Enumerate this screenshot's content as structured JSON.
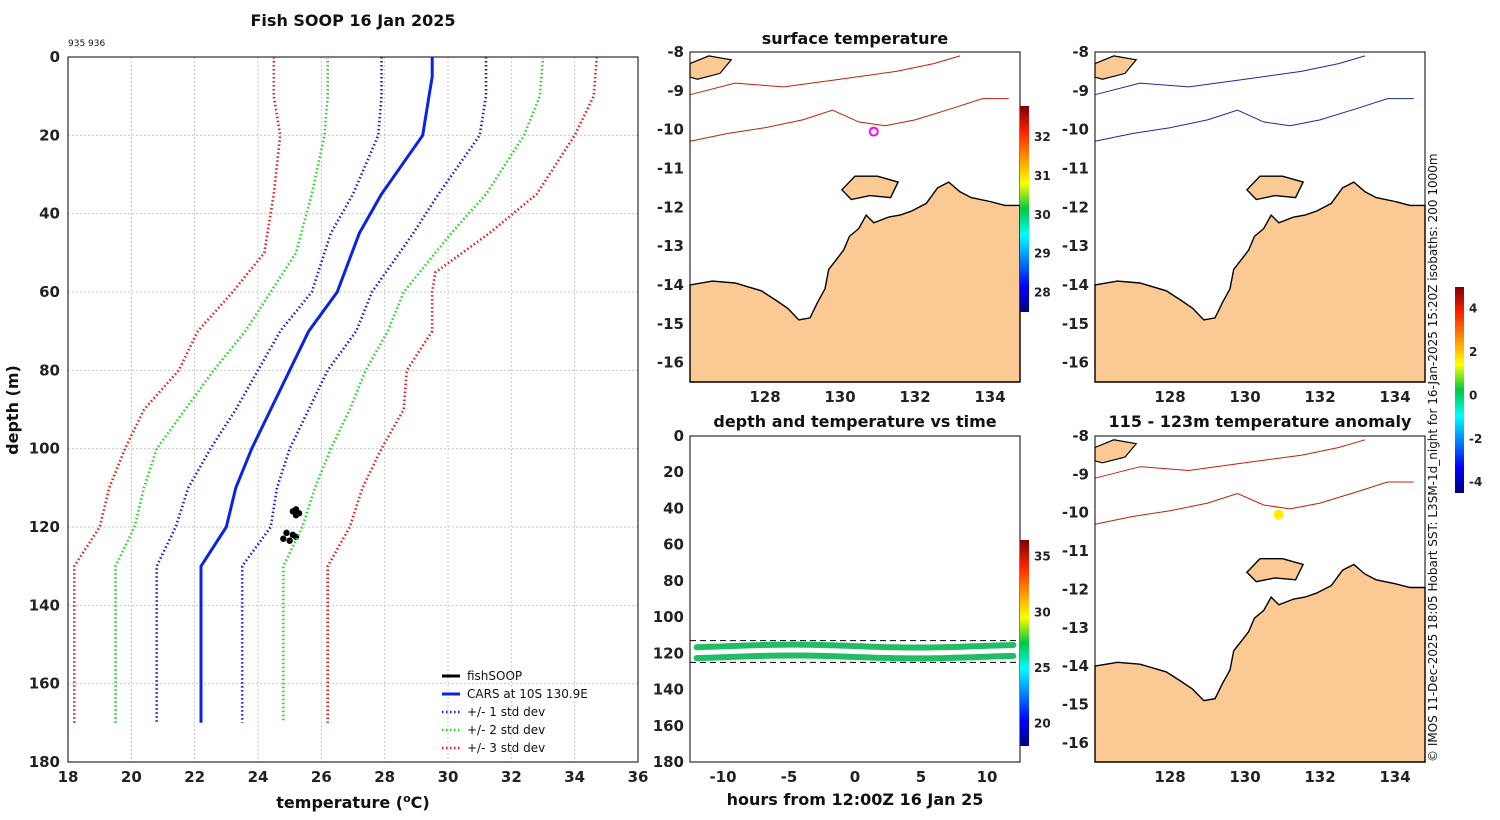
{
  "chart_data": [
    {
      "type": "line",
      "title": "Fish SOOP 16 Jan 2025",
      "subtitle": "935 936",
      "xlabel": "temperature (oC)",
      "ylabel": "depth (m)",
      "xlim": [
        18,
        36
      ],
      "ylim": [
        180,
        0
      ],
      "xticks": [
        "18",
        "20",
        "22",
        "24",
        "26",
        "28",
        "30",
        "32",
        "34",
        "36"
      ],
      "yticks": [
        "0",
        "20",
        "40",
        "60",
        "80",
        "100",
        "120",
        "140",
        "160",
        "180"
      ],
      "grid": true,
      "legend": "bottom-right",
      "series": [
        {
          "name": "fishSOOP",
          "color": "#000000",
          "style": "points",
          "points": [
            [
              25.1,
              116
            ],
            [
              25.2,
              115.5
            ],
            [
              25.3,
              116.5
            ],
            [
              25.2,
              117
            ],
            [
              24.9,
              121.5
            ],
            [
              25.1,
              122
            ],
            [
              25.2,
              122.5
            ],
            [
              24.8,
              123
            ],
            [
              25.0,
              123.5
            ]
          ]
        },
        {
          "name": "CARS at 10S 130.9E",
          "color": "#0a24e6",
          "style": "solid",
          "points": [
            [
              29.5,
              0
            ],
            [
              29.5,
              5
            ],
            [
              29.4,
              10
            ],
            [
              29.2,
              20
            ],
            [
              27.9,
              35
            ],
            [
              27.2,
              45
            ],
            [
              26.5,
              60
            ],
            [
              25.6,
              70
            ],
            [
              25.0,
              80
            ],
            [
              24.4,
              90
            ],
            [
              23.8,
              100
            ],
            [
              23.3,
              110
            ],
            [
              23.0,
              120
            ],
            [
              22.2,
              130
            ],
            [
              22.2,
              170
            ]
          ]
        },
        {
          "name": "+/- 1 std dev",
          "color": "#1a1ad8",
          "style": "dotted",
          "points": [
            [
              27.9,
              0
            ],
            [
              27.9,
              10
            ],
            [
              27.8,
              20
            ],
            [
              27.0,
              35
            ],
            [
              26.3,
              45
            ],
            [
              25.7,
              60
            ],
            [
              24.7,
              70
            ],
            [
              24.0,
              80
            ],
            [
              23.3,
              90
            ],
            [
              22.5,
              100
            ],
            [
              21.8,
              110
            ],
            [
              21.4,
              120
            ],
            [
              20.8,
              130
            ],
            [
              20.8,
              170
            ]
          ]
        },
        {
          "name": "+/- 1 std dev",
          "color": "#1a1ad8",
          "style": "dotted",
          "points": [
            [
              31.2,
              0
            ],
            [
              31.2,
              10
            ],
            [
              31.0,
              20
            ],
            [
              29.7,
              35
            ],
            [
              28.9,
              45
            ],
            [
              27.6,
              60
            ],
            [
              27.1,
              70
            ],
            [
              26.2,
              80
            ],
            [
              25.6,
              90
            ],
            [
              25.0,
              100
            ],
            [
              24.6,
              110
            ],
            [
              24.4,
              120
            ],
            [
              23.5,
              130
            ],
            [
              23.5,
              170
            ]
          ]
        },
        {
          "name": "+/- 2 std dev",
          "color": "#1fd81f",
          "style": "dotted",
          "points": [
            [
              26.2,
              0
            ],
            [
              26.2,
              10
            ],
            [
              26.1,
              20
            ],
            [
              25.7,
              35
            ],
            [
              25.2,
              50
            ],
            [
              24.4,
              60
            ],
            [
              23.6,
              70
            ],
            [
              22.6,
              80
            ],
            [
              21.7,
              90
            ],
            [
              20.8,
              100
            ],
            [
              20.4,
              110
            ],
            [
              20.1,
              120
            ],
            [
              19.5,
              130
            ],
            [
              19.5,
              170
            ]
          ]
        },
        {
          "name": "+/- 2 std dev",
          "color": "#1fd81f",
          "style": "dotted",
          "points": [
            [
              33.0,
              0
            ],
            [
              32.9,
              10
            ],
            [
              32.4,
              20
            ],
            [
              31.2,
              35
            ],
            [
              30.1,
              45
            ],
            [
              28.6,
              60
            ],
            [
              28.1,
              70
            ],
            [
              27.4,
              80
            ],
            [
              26.9,
              90
            ],
            [
              26.3,
              100
            ],
            [
              25.8,
              110
            ],
            [
              25.4,
              120
            ],
            [
              24.8,
              130
            ],
            [
              24.8,
              170
            ]
          ]
        },
        {
          "name": "+/- 3 std dev",
          "color": "#e81a1a",
          "style": "dotted",
          "points": [
            [
              24.5,
              0
            ],
            [
              24.5,
              10
            ],
            [
              24.7,
              20
            ],
            [
              24.5,
              35
            ],
            [
              24.2,
              50
            ],
            [
              23.2,
              60
            ],
            [
              22.1,
              70
            ],
            [
              21.5,
              80
            ],
            [
              20.4,
              90
            ],
            [
              19.8,
              100
            ],
            [
              19.3,
              110
            ],
            [
              19.0,
              120
            ],
            [
              18.2,
              130
            ],
            [
              18.2,
              170
            ]
          ]
        },
        {
          "name": "+/- 3 std dev",
          "color": "#e81a1a",
          "style": "dotted",
          "points": [
            [
              34.7,
              0
            ],
            [
              34.6,
              10
            ],
            [
              34.0,
              20
            ],
            [
              32.8,
              35
            ],
            [
              31.3,
              45
            ],
            [
              29.6,
              55
            ],
            [
              29.5,
              60
            ],
            [
              29.5,
              70
            ],
            [
              28.7,
              80
            ],
            [
              28.6,
              90
            ],
            [
              27.9,
              100
            ],
            [
              27.3,
              110
            ],
            [
              26.9,
              120
            ],
            [
              26.2,
              130
            ],
            [
              26.2,
              170
            ]
          ]
        }
      ],
      "legend_entries": [
        "fishSOOP",
        "CARS at 10S 130.9E",
        "+/- 1 std dev",
        "+/- 2 std dev",
        "+/- 3 std dev"
      ]
    },
    {
      "type": "heatmap",
      "title": "surface temperature",
      "xticks": [
        "128",
        "130",
        "132",
        "134"
      ],
      "yticks": [
        "-8",
        "-9",
        "-10",
        "-11",
        "-12",
        "-13",
        "-14",
        "-15",
        "-16"
      ],
      "xlim": [
        126,
        134.8
      ],
      "ylim": [
        -8,
        -16.5
      ],
      "colorbar": {
        "ticks": [
          "28",
          "29",
          "30",
          "31",
          "32"
        ],
        "range": [
          27.5,
          32.8
        ]
      },
      "marker": {
        "lon": 130.9,
        "lat": -10.05,
        "color": "#ff00ff"
      }
    },
    {
      "type": "heatmap",
      "title": "",
      "xticks": [
        "128",
        "130",
        "132",
        "134"
      ],
      "yticks": [
        "-8",
        "-9",
        "-10",
        "-11",
        "-12",
        "-13",
        "-14",
        "-15",
        "-16"
      ],
      "xlim": [
        126,
        134.8
      ],
      "ylim": [
        -8,
        -16.5
      ]
    },
    {
      "type": "scatter",
      "title": "depth and temperature vs time",
      "xlabel": "hours from 12:00Z 16 Jan 25",
      "xticks": [
        "-10",
        "-5",
        "0",
        "5",
        "10"
      ],
      "yticks": [
        "0",
        "20",
        "40",
        "60",
        "80",
        "100",
        "120",
        "140",
        "160",
        "180"
      ],
      "xlim": [
        -12.5,
        12.5
      ],
      "ylim": [
        180,
        0
      ],
      "bands": [
        {
          "depth": 116,
          "color": "#22bb66"
        },
        {
          "depth": 122,
          "color": "#22bb66"
        }
      ],
      "dashed_lines": [
        113,
        125
      ],
      "colorbar": {
        "ticks": [
          "20",
          "25",
          "30",
          "35"
        ],
        "range": [
          18,
          36.5
        ]
      }
    },
    {
      "type": "heatmap",
      "title": "115 - 123m temperature anomaly",
      "xticks": [
        "128",
        "130",
        "132",
        "134"
      ],
      "yticks": [
        "-8",
        "-9",
        "-10",
        "-11",
        "-12",
        "-13",
        "-14",
        "-15",
        "-16"
      ],
      "xlim": [
        126,
        134.8
      ],
      "ylim": [
        -8,
        -16.5
      ],
      "colorbar": {
        "ticks": [
          "-4",
          "-2",
          "0",
          "2",
          "4"
        ],
        "range": [
          -4.5,
          5
        ]
      },
      "marker": {
        "lon": 130.9,
        "lat": -10.05,
        "color": "#ffee00"
      }
    }
  ],
  "side_text": "© IMOS 11-Dec-2025 18:05 Hobart SST: L3SM-1d_night for 16-Jan-2025 15:20Z isobaths: 200  1000m"
}
